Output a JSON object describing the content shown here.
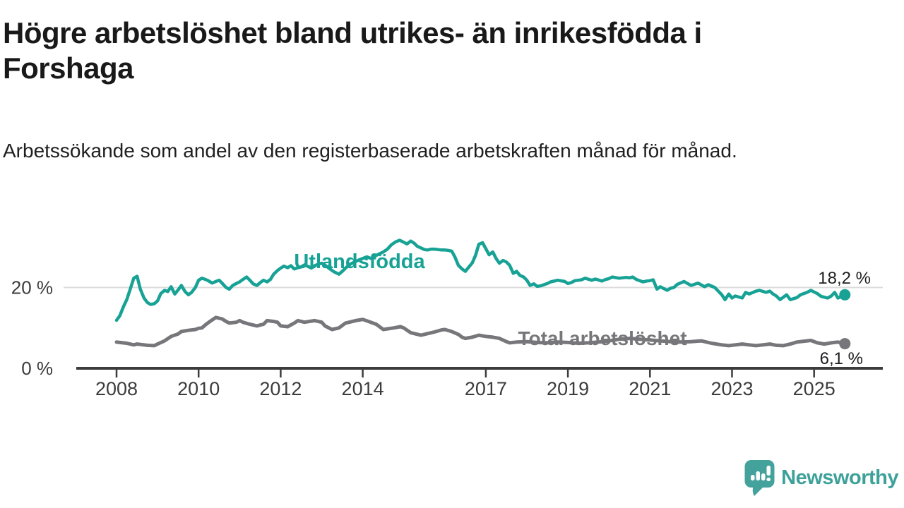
{
  "header": {
    "title": "Högre arbetslöshet bland utrikes- än inrikesfödda i Forshaga",
    "subtitle": "Arbetssökande som andel av den registerbaserade arbetskraften månad för månad."
  },
  "footer": {
    "brand": "Newsworthy",
    "logo_icon": "bar-chart-speech-bubble-icon",
    "brand_color": "#3da19a"
  },
  "chart_data": {
    "type": "line",
    "title": "Högre arbetslöshet bland utrikes- än inrikesfödda i Forshaga",
    "xlabel": "",
    "ylabel": "",
    "x_ticks": [
      2008,
      2010,
      2012,
      2014,
      2017,
      2019,
      2021,
      2023,
      2025
    ],
    "x_range_years": [
      2007.0,
      2026.7
    ],
    "y_range": [
      0,
      36
    ],
    "y_ticks": [
      {
        "value": 0,
        "label": "0 %"
      },
      {
        "value": 20,
        "label": "20 %"
      }
    ],
    "gridlines": [
      20
    ],
    "grid": "single light horizontal line at 20 %",
    "legend_position": "inline-labels-on-lines",
    "axis_color": "#3c3c3c",
    "grid_color": "#dcdcdc",
    "series": [
      {
        "name": "Utlandsfödda",
        "color": "#17a295",
        "end_label": "18,2 %",
        "end_value": 18.2,
        "points": [
          [
            2008.0,
            11.9
          ],
          [
            2008.08,
            13.0
          ],
          [
            2008.17,
            15.3
          ],
          [
            2008.25,
            17.0
          ],
          [
            2008.33,
            19.5
          ],
          [
            2008.42,
            22.3
          ],
          [
            2008.5,
            22.8
          ],
          [
            2008.58,
            19.6
          ],
          [
            2008.67,
            17.4
          ],
          [
            2008.75,
            16.3
          ],
          [
            2008.83,
            15.8
          ],
          [
            2008.92,
            16.0
          ],
          [
            2009.0,
            16.7
          ],
          [
            2009.08,
            18.5
          ],
          [
            2009.17,
            19.3
          ],
          [
            2009.25,
            19.0
          ],
          [
            2009.33,
            20.2
          ],
          [
            2009.42,
            18.4
          ],
          [
            2009.5,
            19.4
          ],
          [
            2009.58,
            20.5
          ],
          [
            2009.67,
            19.0
          ],
          [
            2009.75,
            18.2
          ],
          [
            2009.83,
            18.8
          ],
          [
            2009.92,
            20.0
          ],
          [
            2010.0,
            21.8
          ],
          [
            2010.08,
            22.3
          ],
          [
            2010.17,
            22.0
          ],
          [
            2010.25,
            21.6
          ],
          [
            2010.33,
            21.1
          ],
          [
            2010.42,
            21.5
          ],
          [
            2010.5,
            21.8
          ],
          [
            2010.58,
            21.0
          ],
          [
            2010.67,
            20.0
          ],
          [
            2010.75,
            19.6
          ],
          [
            2010.83,
            20.5
          ],
          [
            2010.92,
            21.0
          ],
          [
            2011.0,
            21.4
          ],
          [
            2011.08,
            22.0
          ],
          [
            2011.17,
            22.6
          ],
          [
            2011.25,
            21.8
          ],
          [
            2011.33,
            20.9
          ],
          [
            2011.42,
            20.5
          ],
          [
            2011.5,
            21.2
          ],
          [
            2011.58,
            21.8
          ],
          [
            2011.67,
            21.4
          ],
          [
            2011.75,
            22.0
          ],
          [
            2011.83,
            23.3
          ],
          [
            2011.92,
            24.2
          ],
          [
            2012.0,
            24.8
          ],
          [
            2012.08,
            25.3
          ],
          [
            2012.17,
            24.9
          ],
          [
            2012.25,
            25.4
          ],
          [
            2012.33,
            24.6
          ],
          [
            2012.42,
            24.9
          ],
          [
            2012.5,
            25.1
          ],
          [
            2012.58,
            25.6
          ],
          [
            2012.67,
            25.2
          ],
          [
            2012.75,
            24.8
          ],
          [
            2012.83,
            25.4
          ],
          [
            2012.92,
            25.8
          ],
          [
            2013.0,
            26.0
          ],
          [
            2013.1,
            25.4
          ],
          [
            2013.2,
            24.6
          ],
          [
            2013.3,
            23.9
          ],
          [
            2013.42,
            23.3
          ],
          [
            2013.5,
            24.0
          ],
          [
            2013.6,
            25.0
          ],
          [
            2013.7,
            25.8
          ],
          [
            2013.8,
            26.3
          ],
          [
            2013.9,
            26.8
          ],
          [
            2014.0,
            27.2
          ],
          [
            2014.1,
            27.6
          ],
          [
            2014.2,
            27.2
          ],
          [
            2014.3,
            27.8
          ],
          [
            2014.42,
            28.4
          ],
          [
            2014.5,
            28.8
          ],
          [
            2014.6,
            29.5
          ],
          [
            2014.7,
            30.6
          ],
          [
            2014.8,
            31.3
          ],
          [
            2014.9,
            31.7
          ],
          [
            2015.0,
            31.2
          ],
          [
            2015.08,
            30.8
          ],
          [
            2015.17,
            31.5
          ],
          [
            2015.25,
            31.0
          ],
          [
            2015.33,
            30.2
          ],
          [
            2015.42,
            29.8
          ],
          [
            2015.5,
            29.4
          ],
          [
            2015.58,
            29.3
          ],
          [
            2015.67,
            29.5
          ],
          [
            2015.75,
            29.5
          ],
          [
            2015.83,
            29.4
          ],
          [
            2015.92,
            29.3
          ],
          [
            2016.0,
            29.3
          ],
          [
            2016.08,
            29.2
          ],
          [
            2016.17,
            29.0
          ],
          [
            2016.25,
            27.5
          ],
          [
            2016.33,
            25.5
          ],
          [
            2016.42,
            24.6
          ],
          [
            2016.5,
            24.0
          ],
          [
            2016.58,
            25.0
          ],
          [
            2016.67,
            26.1
          ],
          [
            2016.75,
            28.0
          ],
          [
            2016.83,
            30.7
          ],
          [
            2016.92,
            31.1
          ],
          [
            2017.0,
            29.6
          ],
          [
            2017.08,
            28.1
          ],
          [
            2017.17,
            28.8
          ],
          [
            2017.25,
            27.2
          ],
          [
            2017.33,
            26.0
          ],
          [
            2017.42,
            26.7
          ],
          [
            2017.5,
            26.3
          ],
          [
            2017.58,
            25.5
          ],
          [
            2017.67,
            23.5
          ],
          [
            2017.75,
            24.0
          ],
          [
            2017.83,
            23.0
          ],
          [
            2017.92,
            22.6
          ],
          [
            2018.0,
            21.8
          ],
          [
            2018.08,
            20.5
          ],
          [
            2018.17,
            20.9
          ],
          [
            2018.25,
            20.3
          ],
          [
            2018.33,
            20.4
          ],
          [
            2018.5,
            21.0
          ],
          [
            2018.58,
            21.4
          ],
          [
            2018.75,
            21.8
          ],
          [
            2018.92,
            21.5
          ],
          [
            2019.0,
            21.0
          ],
          [
            2019.08,
            21.2
          ],
          [
            2019.17,
            21.7
          ],
          [
            2019.33,
            21.9
          ],
          [
            2019.42,
            22.3
          ],
          [
            2019.58,
            21.8
          ],
          [
            2019.67,
            22.1
          ],
          [
            2019.83,
            21.6
          ],
          [
            2019.92,
            22.0
          ],
          [
            2020.0,
            22.2
          ],
          [
            2020.08,
            22.6
          ],
          [
            2020.25,
            22.3
          ],
          [
            2020.42,
            22.5
          ],
          [
            2020.5,
            22.4
          ],
          [
            2020.58,
            22.6
          ],
          [
            2020.67,
            22.0
          ],
          [
            2020.83,
            21.4
          ],
          [
            2020.92,
            21.6
          ],
          [
            2021.0,
            21.7
          ],
          [
            2021.08,
            21.9
          ],
          [
            2021.17,
            19.6
          ],
          [
            2021.25,
            20.2
          ],
          [
            2021.42,
            19.3
          ],
          [
            2021.5,
            19.8
          ],
          [
            2021.58,
            20.0
          ],
          [
            2021.67,
            20.8
          ],
          [
            2021.83,
            21.5
          ],
          [
            2022.0,
            20.5
          ],
          [
            2022.17,
            21.1
          ],
          [
            2022.33,
            20.2
          ],
          [
            2022.42,
            20.7
          ],
          [
            2022.58,
            20.0
          ],
          [
            2022.75,
            18.2
          ],
          [
            2022.83,
            17.0
          ],
          [
            2022.92,
            18.4
          ],
          [
            2023.0,
            17.4
          ],
          [
            2023.08,
            17.9
          ],
          [
            2023.25,
            17.4
          ],
          [
            2023.33,
            18.8
          ],
          [
            2023.42,
            18.4
          ],
          [
            2023.58,
            19.1
          ],
          [
            2023.67,
            19.3
          ],
          [
            2023.83,
            18.8
          ],
          [
            2023.92,
            19.1
          ],
          [
            2024.0,
            18.4
          ],
          [
            2024.08,
            17.9
          ],
          [
            2024.17,
            17.0
          ],
          [
            2024.33,
            18.2
          ],
          [
            2024.42,
            17.0
          ],
          [
            2024.58,
            17.5
          ],
          [
            2024.67,
            18.2
          ],
          [
            2024.83,
            18.8
          ],
          [
            2024.92,
            19.3
          ],
          [
            2025.08,
            18.5
          ],
          [
            2025.17,
            17.8
          ],
          [
            2025.33,
            17.4
          ],
          [
            2025.42,
            17.9
          ],
          [
            2025.5,
            18.8
          ],
          [
            2025.58,
            17.4
          ],
          [
            2025.75,
            18.2
          ]
        ]
      },
      {
        "name": "Total arbetslöshet",
        "color": "#76767b",
        "end_label": "6,1 %",
        "end_value": 6.1,
        "points": [
          [
            2008.0,
            6.5
          ],
          [
            2008.08,
            6.4
          ],
          [
            2008.25,
            6.2
          ],
          [
            2008.42,
            5.8
          ],
          [
            2008.5,
            6.0
          ],
          [
            2008.58,
            5.9
          ],
          [
            2008.75,
            5.7
          ],
          [
            2008.92,
            5.6
          ],
          [
            2009.0,
            6.0
          ],
          [
            2009.17,
            6.8
          ],
          [
            2009.33,
            7.9
          ],
          [
            2009.5,
            8.5
          ],
          [
            2009.58,
            9.1
          ],
          [
            2009.75,
            9.4
          ],
          [
            2009.92,
            9.6
          ],
          [
            2010.0,
            9.9
          ],
          [
            2010.08,
            10.0
          ],
          [
            2010.17,
            10.8
          ],
          [
            2010.25,
            11.4
          ],
          [
            2010.42,
            12.6
          ],
          [
            2010.5,
            12.4
          ],
          [
            2010.58,
            12.2
          ],
          [
            2010.67,
            11.6
          ],
          [
            2010.75,
            11.2
          ],
          [
            2010.92,
            11.4
          ],
          [
            2011.0,
            11.8
          ],
          [
            2011.08,
            11.4
          ],
          [
            2011.25,
            10.9
          ],
          [
            2011.42,
            10.5
          ],
          [
            2011.5,
            10.7
          ],
          [
            2011.58,
            10.9
          ],
          [
            2011.67,
            11.8
          ],
          [
            2011.83,
            11.6
          ],
          [
            2011.92,
            11.4
          ],
          [
            2012.0,
            10.5
          ],
          [
            2012.17,
            10.3
          ],
          [
            2012.33,
            11.2
          ],
          [
            2012.42,
            11.8
          ],
          [
            2012.58,
            11.4
          ],
          [
            2012.83,
            11.8
          ],
          [
            2013.0,
            11.4
          ],
          [
            2013.08,
            10.5
          ],
          [
            2013.25,
            9.6
          ],
          [
            2013.42,
            10.0
          ],
          [
            2013.58,
            11.2
          ],
          [
            2013.67,
            11.4
          ],
          [
            2013.83,
            11.8
          ],
          [
            2014.0,
            12.1
          ],
          [
            2014.17,
            11.5
          ],
          [
            2014.33,
            10.9
          ],
          [
            2014.5,
            9.6
          ],
          [
            2014.75,
            10.0
          ],
          [
            2014.92,
            10.3
          ],
          [
            2015.0,
            10.0
          ],
          [
            2015.17,
            8.8
          ],
          [
            2015.42,
            8.2
          ],
          [
            2015.58,
            8.6
          ],
          [
            2015.75,
            9.0
          ],
          [
            2015.92,
            9.5
          ],
          [
            2016.0,
            9.6
          ],
          [
            2016.17,
            9.1
          ],
          [
            2016.33,
            8.4
          ],
          [
            2016.42,
            7.7
          ],
          [
            2016.5,
            7.4
          ],
          [
            2016.67,
            7.7
          ],
          [
            2016.83,
            8.2
          ],
          [
            2017.0,
            7.9
          ],
          [
            2017.17,
            7.7
          ],
          [
            2017.33,
            7.4
          ],
          [
            2017.5,
            6.6
          ],
          [
            2017.58,
            6.3
          ],
          [
            2017.75,
            6.5
          ],
          [
            2018.0,
            6.6
          ],
          [
            2018.25,
            6.4
          ],
          [
            2018.5,
            6.3
          ],
          [
            2018.75,
            6.5
          ],
          [
            2019.0,
            6.4
          ],
          [
            2019.25,
            6.2
          ],
          [
            2019.5,
            6.3
          ],
          [
            2019.75,
            6.5
          ],
          [
            2020.0,
            6.8
          ],
          [
            2020.25,
            7.2
          ],
          [
            2020.5,
            7.4
          ],
          [
            2020.75,
            7.2
          ],
          [
            2021.0,
            7.0
          ],
          [
            2021.25,
            6.8
          ],
          [
            2021.5,
            6.6
          ],
          [
            2021.75,
            6.5
          ],
          [
            2022.0,
            6.6
          ],
          [
            2022.25,
            6.8
          ],
          [
            2022.5,
            6.2
          ],
          [
            2022.75,
            5.8
          ],
          [
            2022.92,
            5.6
          ],
          [
            2023.08,
            5.8
          ],
          [
            2023.25,
            6.0
          ],
          [
            2023.42,
            5.8
          ],
          [
            2023.58,
            5.6
          ],
          [
            2023.75,
            5.8
          ],
          [
            2023.92,
            6.0
          ],
          [
            2024.08,
            5.7
          ],
          [
            2024.25,
            5.6
          ],
          [
            2024.42,
            6.0
          ],
          [
            2024.58,
            6.5
          ],
          [
            2024.75,
            6.7
          ],
          [
            2024.92,
            6.9
          ],
          [
            2025.08,
            6.3
          ],
          [
            2025.25,
            6.0
          ],
          [
            2025.42,
            6.3
          ],
          [
            2025.58,
            6.5
          ],
          [
            2025.75,
            6.1
          ]
        ]
      }
    ]
  }
}
